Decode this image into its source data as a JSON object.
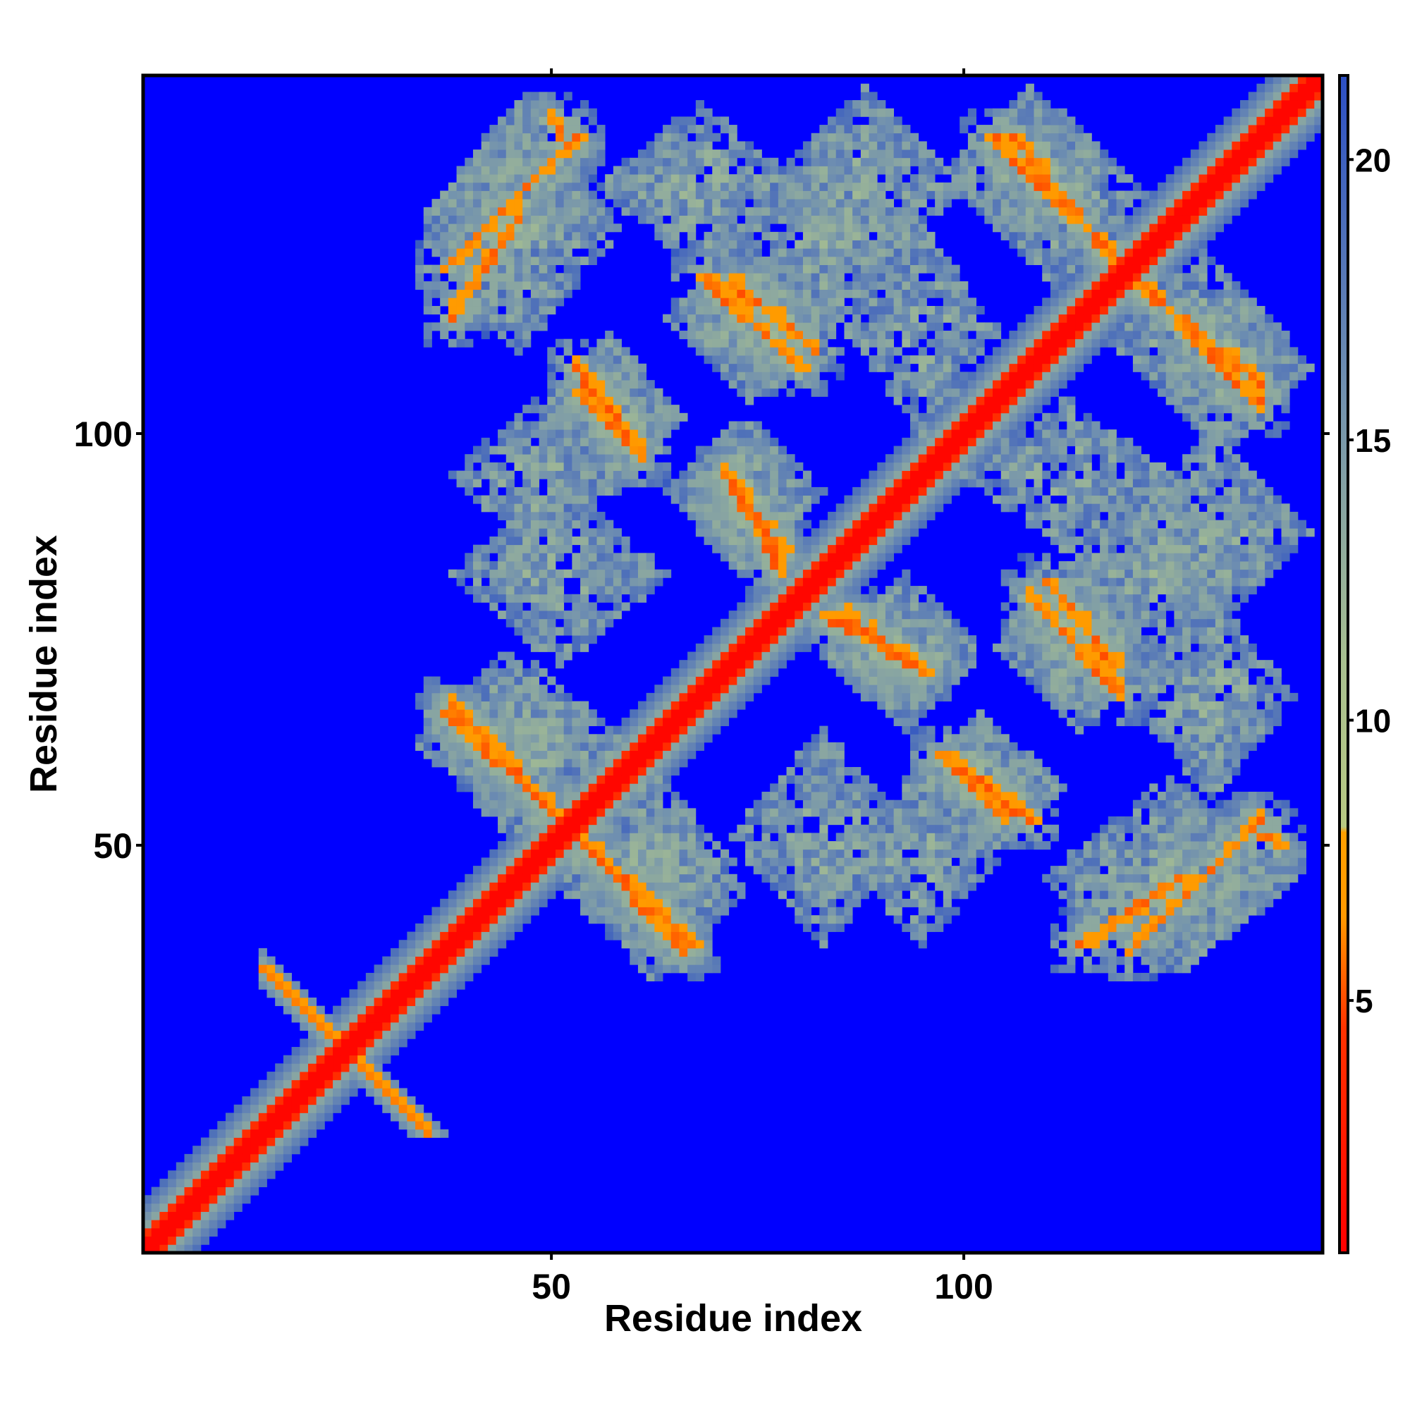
{
  "chart_data": {
    "type": "heatmap",
    "title": "",
    "xlabel": "Residue index",
    "ylabel": "Residue index",
    "xlim": [
      1,
      143
    ],
    "ylim": [
      1,
      143
    ],
    "x_ticks": [
      50,
      100
    ],
    "x_tick_labels": [
      "50",
      "100"
    ],
    "y_ticks": [
      50,
      100
    ],
    "y_tick_labels": [
      "50",
      "100"
    ],
    "grid": false,
    "colorbar": {
      "placement": "right",
      "range": [
        0.5,
        21.5
      ],
      "ticks": [
        5,
        10,
        15,
        20
      ],
      "tick_labels": [
        "5",
        "10",
        "15",
        "20"
      ],
      "stops": [
        {
          "value": 0.5,
          "color": "#ff0000"
        },
        {
          "value": 4.5,
          "color": "#ff3300"
        },
        {
          "value": 6.5,
          "color": "#ff9900"
        },
        {
          "value": 8.0,
          "color": "#ff9f00"
        },
        {
          "value": 8.1,
          "color": "#b8c882"
        },
        {
          "value": 11.0,
          "color": "#a8c090"
        },
        {
          "value": 16.0,
          "color": "#6f8fb0"
        },
        {
          "value": 21.5,
          "color": "#2c4fc4"
        }
      ]
    },
    "background_value": 21.5,
    "background_color": "#0000ff",
    "features": {
      "diagonal": {
        "from": 1,
        "to": 143,
        "value": 1
      },
      "near_diagonal_spur": {
        "center": [
          25,
          25
        ],
        "span": [
          20,
          35
        ],
        "value": 6
      },
      "contact_stripes": [
        {
          "x": [
            37,
            51
          ],
          "y": [
            66,
            53
          ],
          "value": 6
        },
        {
          "x": [
            54,
            67
          ],
          "y": [
            50,
            38
          ],
          "value": 6
        },
        {
          "x": [
            37,
            53
          ],
          "y": [
            120,
            136
          ],
          "value": 6
        },
        {
          "x": [
            53,
            60
          ],
          "y": [
            105,
            98
          ],
          "value": 6
        },
        {
          "x": [
            68,
            80
          ],
          "y": [
            119,
            108
          ],
          "value": 6
        },
        {
          "x": [
            71,
            78
          ],
          "y": [
            95,
            85
          ],
          "value": 6
        },
        {
          "x": [
            83,
            95
          ],
          "y": [
            78,
            71
          ],
          "value": 6
        },
        {
          "x": [
            97,
            108
          ],
          "y": [
            61,
            53
          ],
          "value": 6
        },
        {
          "x": [
            110,
            118
          ],
          "y": [
            82,
            72
          ],
          "value": 6
        },
        {
          "x": [
            103,
            113
          ],
          "y": [
            136,
            126
          ],
          "value": 6
        },
        {
          "x": [
            121,
            136
          ],
          "y": [
            118,
            106
          ],
          "value": 6
        },
        {
          "x": [
            114,
            126
          ],
          "y": [
            38,
            46
          ],
          "value": 6
        },
        {
          "x": [
            134,
            138
          ],
          "y": [
            52,
            50
          ],
          "value": 6
        }
      ],
      "contact_regions": [
        {
          "x": [
            36,
            60
          ],
          "y": [
            50,
            72
          ],
          "value": 12
        },
        {
          "x": [
            52,
            73
          ],
          "y": [
            34,
            55
          ],
          "value": 12
        },
        {
          "x": [
            36,
            55
          ],
          "y": [
            115,
            140
          ],
          "value": 12
        },
        {
          "x": [
            50,
            65
          ],
          "y": [
            92,
            112
          ],
          "value": 12
        },
        {
          "x": [
            64,
            84
          ],
          "y": [
            104,
            124
          ],
          "value": 12
        },
        {
          "x": [
            65,
            82
          ],
          "y": [
            82,
            102
          ],
          "value": 12
        },
        {
          "x": [
            84,
            102
          ],
          "y": [
            64,
            83
          ],
          "value": 12
        },
        {
          "x": [
            92,
            112
          ],
          "y": [
            48,
            66
          ],
          "value": 12
        },
        {
          "x": [
            105,
            122
          ],
          "y": [
            66,
            86
          ],
          "value": 12
        },
        {
          "x": [
            98,
            118
          ],
          "y": [
            122,
            142
          ],
          "value": 12
        },
        {
          "x": [
            118,
            140
          ],
          "y": [
            100,
            122
          ],
          "value": 12
        },
        {
          "x": [
            110,
            140
          ],
          "y": [
            34,
            58
          ],
          "value": 12
        },
        {
          "x": [
            86,
            104
          ],
          "y": [
            38,
            58
          ],
          "value": 12
        },
        {
          "x": [
            70,
            96
          ],
          "y": [
            112,
            135
          ],
          "value": 12
        },
        {
          "x": [
            38,
            64
          ],
          "y": [
            72,
            94
          ],
          "value": 12
        },
        {
          "x": [
            118,
            142
          ],
          "y": [
            76,
            100
          ],
          "value": 12
        },
        {
          "x": [
            100,
            125
          ],
          "y": [
            86,
            104
          ],
          "value": 12
        },
        {
          "x": [
            56,
            80
          ],
          "y": [
            120,
            140
          ],
          "value": 12
        }
      ]
    }
  }
}
